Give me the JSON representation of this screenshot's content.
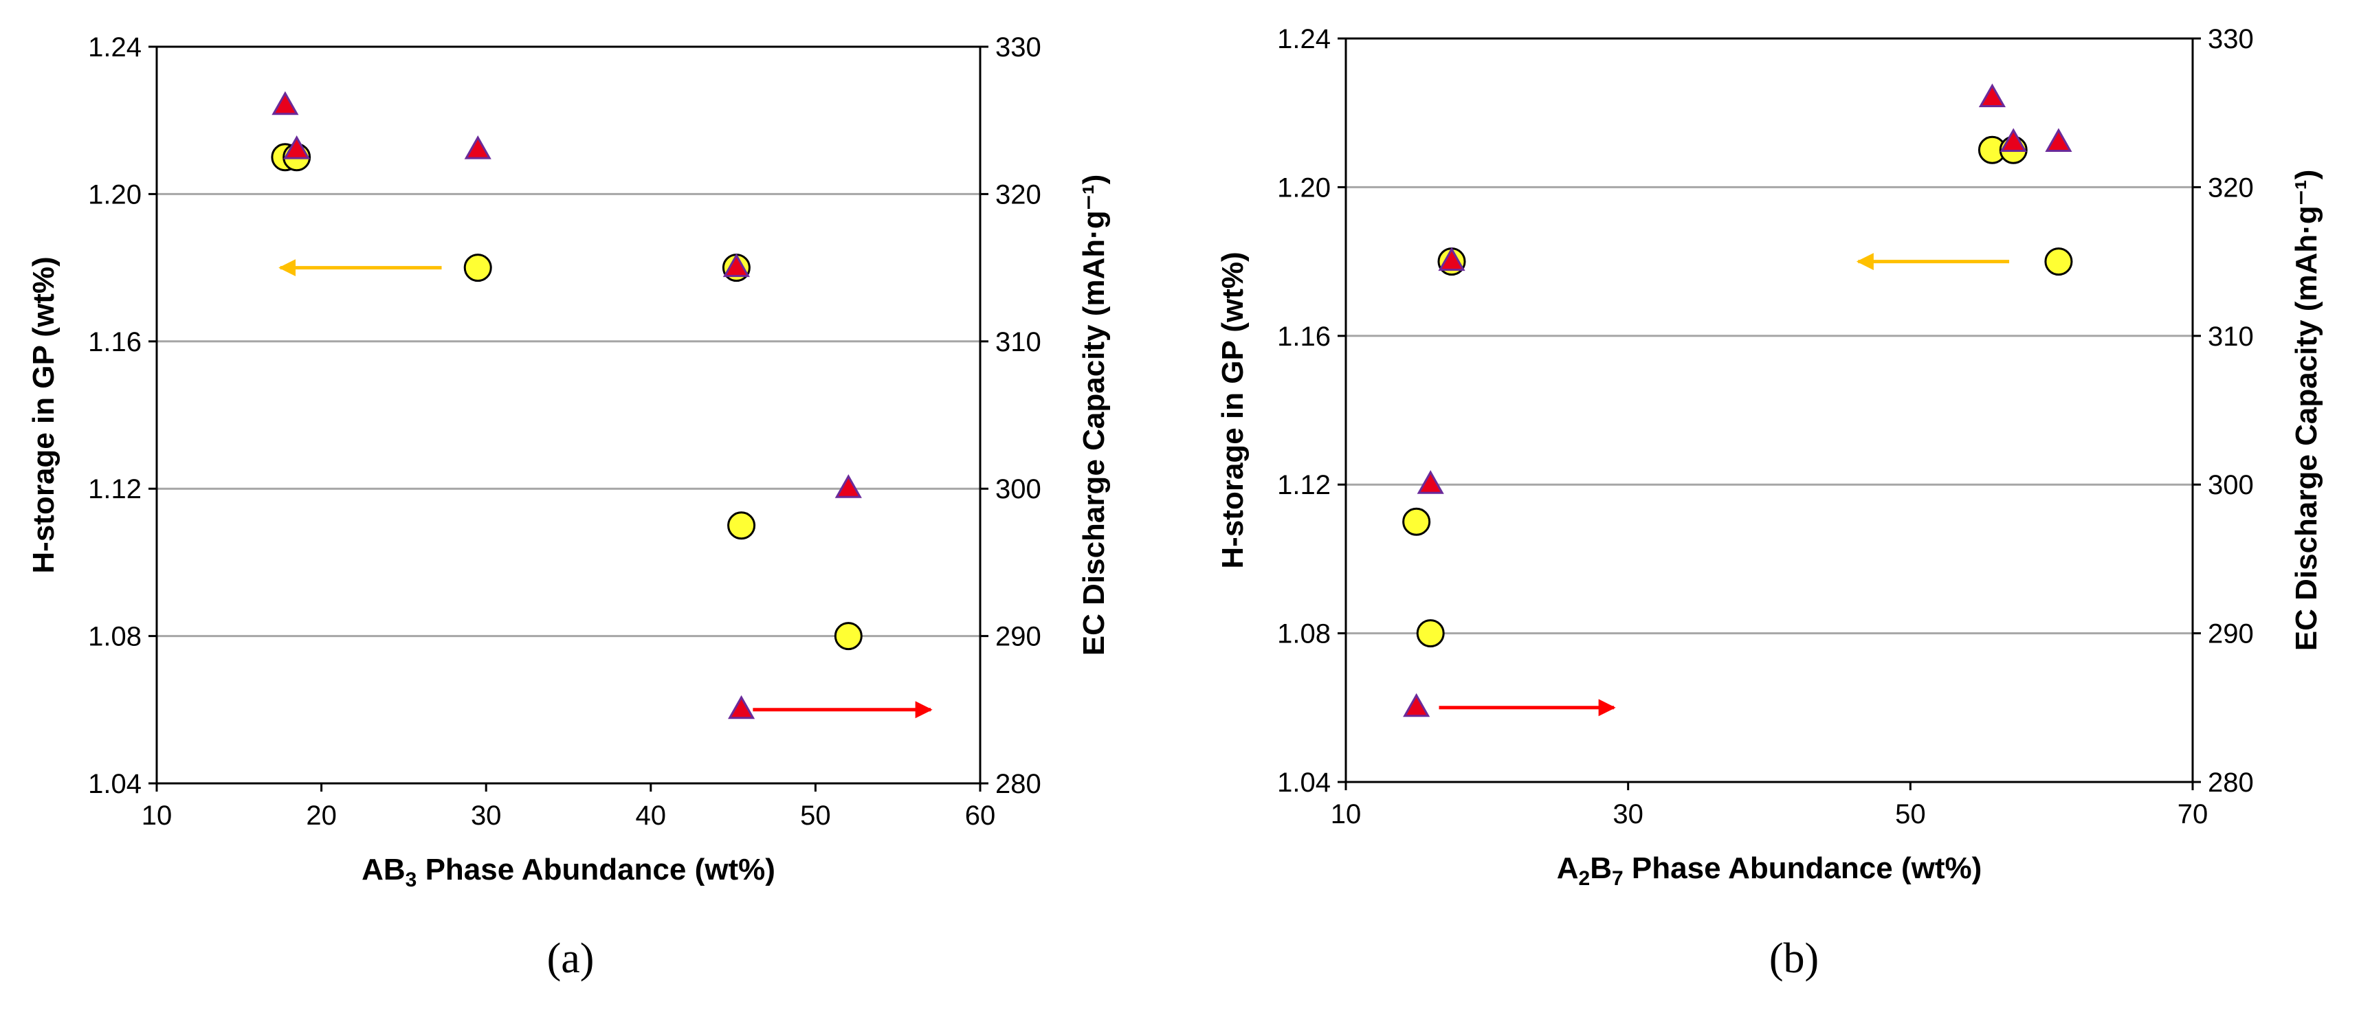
{
  "colors": {
    "circle_fill": "#ffff33",
    "circle_stroke": "#000000",
    "triangle_fill": "#e8001c",
    "triangle_stroke": "#6a2a9a",
    "left_arrow": "#ffc000",
    "right_arrow": "#ff0000",
    "grid": "#a6a6a6"
  },
  "chart_data": [
    {
      "type": "scatter",
      "panel_label": "(a)",
      "xlabel_main": "AB",
      "xlabel_sub": "3",
      "xlabel_rest": " Phase Abundance (wt%)",
      "ylabel": "H-storage in GP (wt%)",
      "y2label": "EC Discharge Capacity (mAh·g⁻¹)",
      "xlim": [
        10,
        60
      ],
      "ylim": [
        1.04,
        1.24
      ],
      "y2lim": [
        280,
        330
      ],
      "xticks": [
        "10",
        "20",
        "30",
        "40",
        "50",
        "60"
      ],
      "yticks": [
        "1.04",
        "1.08",
        "1.12",
        "1.16",
        "1.20",
        "1.24"
      ],
      "y2ticks": [
        "280",
        "290",
        "300",
        "310",
        "320",
        "330"
      ],
      "series": [
        {
          "name": "H-storage in GP",
          "axis": "left",
          "marker": "circle",
          "x": [
            17.8,
            18.5,
            29.5,
            45.2,
            45.5,
            52.0
          ],
          "y": [
            1.21,
            1.21,
            1.18,
            1.18,
            1.11,
            1.08
          ]
        },
        {
          "name": "EC Discharge Capacity",
          "axis": "right",
          "marker": "triangle",
          "x": [
            17.8,
            18.5,
            29.5,
            45.2,
            52.0,
            45.5
          ],
          "y": [
            326,
            323,
            323,
            315,
            300,
            285
          ]
        }
      ],
      "arrows": [
        {
          "direction": "left",
          "color_key": "left_arrow",
          "x_from": 27.3,
          "x_to": 17.5,
          "y": 1.18
        },
        {
          "direction": "right",
          "color_key": "right_arrow",
          "x_from": 46.2,
          "x_to": 57.0,
          "y": 1.06
        }
      ]
    },
    {
      "type": "scatter",
      "panel_label": "(b)",
      "xlabel_main": "A",
      "xlabel_sub": "2",
      "xlabel_mid": "B",
      "xlabel_sub2": "7",
      "xlabel_rest": " Phase Abundance (wt%)",
      "ylabel": "H-storage in GP (wt%)",
      "y2label": "EC Discharge Capacity (mAh·g⁻¹)",
      "xlim": [
        10,
        70
      ],
      "ylim": [
        1.04,
        1.24
      ],
      "y2lim": [
        280,
        330
      ],
      "xticks": [
        "10",
        "30",
        "50",
        "70"
      ],
      "yticks": [
        "1.04",
        "1.08",
        "1.12",
        "1.16",
        "1.20",
        "1.24"
      ],
      "y2ticks": [
        "280",
        "290",
        "300",
        "310",
        "320",
        "330"
      ],
      "series": [
        {
          "name": "H-storage in GP",
          "axis": "left",
          "marker": "circle",
          "x": [
            55.8,
            57.3,
            60.5,
            17.5,
            15.0,
            16.0
          ],
          "y": [
            1.21,
            1.21,
            1.18,
            1.18,
            1.11,
            1.08
          ]
        },
        {
          "name": "EC Discharge Capacity",
          "axis": "right",
          "marker": "triangle",
          "x": [
            55.8,
            57.3,
            60.5,
            17.5,
            16.0,
            15.0
          ],
          "y": [
            326,
            323,
            323,
            315,
            300,
            285
          ]
        }
      ],
      "arrows": [
        {
          "direction": "left",
          "color_key": "left_arrow",
          "x_from": 57.0,
          "x_to": 46.3,
          "y": 1.18
        },
        {
          "direction": "right",
          "color_key": "right_arrow",
          "x_from": 16.6,
          "x_to": 29.0,
          "y": 1.06
        }
      ]
    }
  ]
}
